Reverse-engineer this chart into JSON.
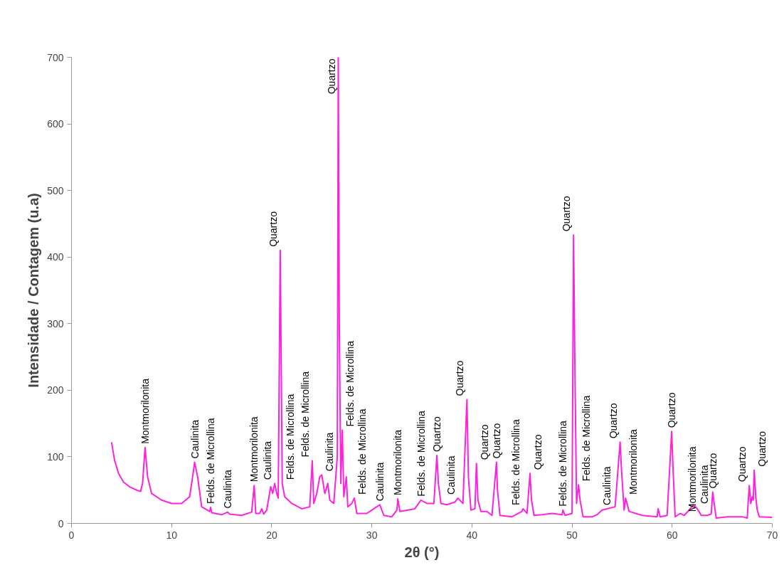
{
  "chart_data": {
    "type": "line",
    "xlabel": "2θ (°)",
    "ylabel": "Intensidade / Contagem (u.a)",
    "xlim": [
      0,
      70
    ],
    "xticks": [
      0,
      10,
      20,
      30,
      40,
      50,
      60,
      70
    ],
    "ylim": [
      0,
      700
    ],
    "yticks": [
      0,
      100,
      200,
      300,
      400,
      500,
      600,
      700
    ],
    "grid": false,
    "marker": "none",
    "line_style": "solid",
    "series": [
      {
        "color": "#ff22dd",
        "x": [
          4.0,
          4.3,
          4.7,
          5.2,
          5.8,
          6.5,
          6.9,
          7.1,
          7.35,
          7.6,
          8.0,
          9,
          10,
          11,
          11.8,
          12.1,
          12.3,
          12.6,
          13.0,
          13.8,
          13.9,
          14.0,
          15,
          15.6,
          15.8,
          17,
          18,
          18.25,
          18.4,
          18.8,
          19.0,
          19.2,
          19.5,
          19.9,
          20.1,
          20.3,
          20.5,
          20.65,
          20.85,
          21.05,
          21.3,
          22,
          23,
          23.8,
          24.05,
          24.2,
          24.5,
          24.8,
          25.0,
          25.3,
          25.6,
          25.8,
          26.2,
          26.55,
          26.65,
          26.75,
          26.9,
          27.05,
          27.2,
          27.45,
          27.6,
          28.0,
          28.25,
          28.5,
          29.5,
          30.2,
          30.8,
          31.2,
          32,
          32.5,
          32.6,
          32.8,
          34.3,
          34.9,
          35.5,
          36.2,
          36.5,
          36.65,
          36.9,
          37.5,
          38.3,
          38.6,
          39.1,
          39.5,
          39.65,
          39.9,
          40.3,
          40.45,
          40.6,
          40.9,
          41.5,
          42.0,
          42.45,
          42.55,
          42.8,
          44,
          45,
          45.1,
          45.5,
          45.8,
          45.95,
          46.2,
          47,
          48,
          49,
          49.1,
          49.3,
          50.0,
          50.15,
          50.3,
          50.45,
          50.65,
          50.8,
          51.1,
          52,
          52.5,
          53,
          53.5,
          54.3,
          54.8,
          54.95,
          55.2,
          55.35,
          55.7,
          57,
          58.5,
          58.6,
          58.8,
          59.5,
          59.95,
          60.1,
          60.3,
          60.8,
          61.2,
          61.7,
          62.1,
          62.4,
          62.6,
          62.9,
          63.5,
          63.9,
          64.05,
          64.2,
          64.4,
          65.5,
          67,
          67.5,
          67.7,
          67.85,
          68.0,
          68.1,
          68.2,
          68.35,
          68.5,
          68.7,
          70
        ],
        "values": [
          122,
          95,
          75,
          62,
          55,
          50,
          48,
          60,
          114,
          70,
          45,
          35,
          30,
          30,
          40,
          70,
          92,
          70,
          25,
          18,
          24,
          16,
          13,
          17,
          14,
          12,
          17,
          57,
          15,
          15,
          22,
          14,
          20,
          55,
          45,
          60,
          45,
          38,
          410,
          60,
          40,
          30,
          22,
          25,
          94,
          30,
          45,
          70,
          73,
          45,
          60,
          35,
          30,
          100,
          700,
          300,
          60,
          140,
          40,
          70,
          25,
          30,
          38,
          15,
          15,
          22,
          28,
          12,
          10,
          20,
          37,
          18,
          22,
          35,
          30,
          30,
          102,
          60,
          30,
          28,
          32,
          38,
          30,
          186,
          70,
          20,
          22,
          90,
          35,
          18,
          18,
          12,
          92,
          50,
          12,
          10,
          18,
          22,
          15,
          75,
          35,
          12,
          13,
          15,
          13,
          20,
          12,
          15,
          433,
          215,
          30,
          58,
          35,
          10,
          10,
          13,
          20,
          22,
          25,
          122,
          78,
          20,
          38,
          18,
          12,
          10,
          22,
          10,
          12,
          138,
          78,
          10,
          15,
          12,
          20,
          28,
          24,
          20,
          12,
          12,
          14,
          47,
          30,
          8,
          10,
          10,
          8,
          57,
          30,
          40,
          35,
          80,
          40,
          20,
          10,
          9
        ]
      }
    ],
    "annotations": [
      {
        "text": "Montmorilonita",
        "x": 7.35,
        "y": 114
      },
      {
        "text": "Caulinita",
        "x": 12.3,
        "y": 92
      },
      {
        "text": "Felds. de Microllina",
        "x": 13.9,
        "y": 24
      },
      {
        "text": "Caulinita",
        "x": 15.6,
        "y": 17
      },
      {
        "text": "Montmorilonita",
        "x": 18.25,
        "y": 57
      },
      {
        "text": "Caulinita",
        "x": 20.3,
        "y": 60
      },
      {
        "text": "Quartzo",
        "x": 20.85,
        "y": 410
      },
      {
        "text": "Felds. de Microllina",
        "x": 21.05,
        "y": 60
      },
      {
        "text": "Felds. de Microllina",
        "x": 24.05,
        "y": 94
      },
      {
        "text": "Caulinita",
        "x": 25.0,
        "y": 73
      },
      {
        "text": "Quartzo",
        "x": 26.65,
        "y": 700
      },
      {
        "text": "Felds. de Microllina",
        "x": 27.05,
        "y": 140
      },
      {
        "text": "Felds. de Microllina",
        "x": 28.25,
        "y": 38
      },
      {
        "text": "Caulinita",
        "x": 30.8,
        "y": 28
      },
      {
        "text": "Montmorilonita",
        "x": 32.6,
        "y": 37
      },
      {
        "text": "Felds. de Microllina",
        "x": 34.9,
        "y": 35
      },
      {
        "text": "Quartzo",
        "x": 36.5,
        "y": 102
      },
      {
        "text": "Caulinita",
        "x": 38.6,
        "y": 38
      },
      {
        "text": "Quartzo",
        "x": 39.5,
        "y": 186
      },
      {
        "text": "Quartzo",
        "x": 40.45,
        "y": 90
      },
      {
        "text": "Quartzo",
        "x": 42.45,
        "y": 92
      },
      {
        "text": "Felds. de Microllina",
        "x": 45.1,
        "y": 22
      },
      {
        "text": "Quartzo",
        "x": 45.8,
        "y": 75
      },
      {
        "text": "Felds. de Microllina",
        "x": 49.1,
        "y": 20
      },
      {
        "text": "Quartzo",
        "x": 50.15,
        "y": 433
      },
      {
        "text": "Felds. de Microllina",
        "x": 50.65,
        "y": 58
      },
      {
        "text": "Caulinita",
        "x": 53.5,
        "y": 22
      },
      {
        "text": "Quartzo",
        "x": 54.8,
        "y": 122
      },
      {
        "text": "Montmorilonita",
        "x": 55.35,
        "y": 38
      },
      {
        "text": "Quartzo",
        "x": 59.95,
        "y": 138
      },
      {
        "text": "Montmorilonita",
        "x": 61.2,
        "y": 12
      },
      {
        "text": "Caulinita",
        "x": 62.4,
        "y": 24
      },
      {
        "text": "Quartzo",
        "x": 64.05,
        "y": 47
      },
      {
        "text": "Quartzo",
        "x": 67.7,
        "y": 57
      },
      {
        "text": "Quartzo",
        "x": 68.2,
        "y": 80
      }
    ]
  }
}
